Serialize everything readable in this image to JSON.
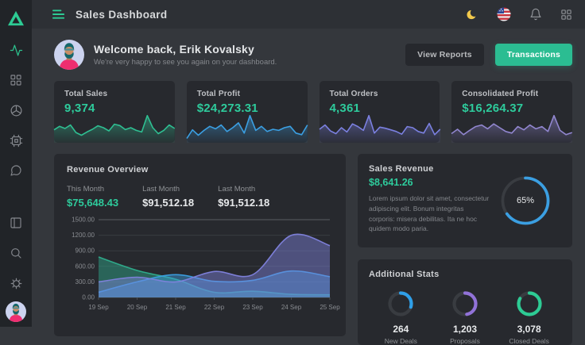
{
  "topbar": {
    "title": "Sales Dashboard"
  },
  "welcome": {
    "title": "Welcome back, Erik Kovalsky",
    "subtitle": "We're very happy to see you again on your dashboard.",
    "buttons": {
      "view_reports": "View Reports",
      "transactions": "Transactions"
    }
  },
  "stat_cards": [
    {
      "key": "total-sales",
      "label": "Total Sales",
      "value": "9,374",
      "chart_index": 1
    },
    {
      "key": "total-profit",
      "label": "Total Profit",
      "value": "$24,273.31",
      "chart_index": 2
    },
    {
      "key": "total-orders",
      "label": "Total Orders",
      "value": "4,361",
      "chart_index": 3
    },
    {
      "key": "consolidated-profit",
      "label": "Consolidated Profit",
      "value": "$16,264.37",
      "chart_index": 4
    }
  ],
  "revenue": {
    "title": "Revenue Overview",
    "stats": [
      {
        "label": "This Month",
        "value": "$75,648.43"
      },
      {
        "label": "Last Month",
        "value": "$91,512.18"
      },
      {
        "label": "Last Month",
        "value": "$91,512.18"
      }
    ]
  },
  "sales_revenue": {
    "title": "Sales Revenue",
    "value": "$8,641.26",
    "body": "Lorem ipsum dolor sit amet, consectetur adipiscing elit. Bonum integritas corporis: misera debilitas. Ita ne hoc quidem modo paria."
  },
  "additional_stats": {
    "title": "Additional Stats",
    "items": [
      {
        "value": "264",
        "label": "New Deals",
        "donut_index": 6
      },
      {
        "value": "1,203",
        "label": "Proposals",
        "donut_index": 7
      },
      {
        "value": "3,078",
        "label": "Closed Deals",
        "donut_index": 8
      }
    ]
  },
  "colors": {
    "accent_green": "#2ecb9c",
    "button_green": "#2bbd92",
    "blue": "#3b9fe2",
    "indigo": "#7f82dd",
    "purple": "#9186cf",
    "moon_yellow": "#f2c94c",
    "panel_bg": "#27292e",
    "page_bg": "#34373c",
    "sidebar_bg": "#212428"
  },
  "chart_data": [
    {
      "id": "revenue-overview",
      "type": "area",
      "title": "Revenue Overview",
      "x": [
        "19 Sep",
        "20 Sep",
        "21 Sep",
        "22 Sep",
        "23 Sep",
        "24 Sep",
        "25 Sep"
      ],
      "ylim": [
        0,
        1500
      ],
      "yticks": [
        0,
        300,
        600,
        900,
        1200,
        1500
      ],
      "grid": true,
      "legend": false,
      "series": [
        {
          "name": "green",
          "color": "#2fae8d",
          "values": [
            780,
            520,
            350,
            100,
            120,
            60,
            50
          ]
        },
        {
          "name": "blue",
          "color": "#3b9fe2",
          "values": [
            100,
            300,
            440,
            310,
            330,
            510,
            400
          ]
        },
        {
          "name": "indigo",
          "color": "#7f82dd",
          "values": [
            300,
            390,
            300,
            500,
            440,
            1200,
            1000
          ]
        }
      ]
    },
    {
      "id": "spark-total-sales",
      "type": "line",
      "color": "#2fbf92",
      "values": [
        42,
        55,
        47,
        60,
        32,
        22,
        34,
        44,
        57,
        50,
        38,
        63,
        58,
        43,
        50,
        40,
        34,
        95,
        50,
        28,
        40,
        60,
        47
      ]
    },
    {
      "id": "spark-total-profit",
      "type": "line",
      "color": "#3b9fe2",
      "values": [
        10,
        42,
        22,
        40,
        55,
        46,
        60,
        36,
        50,
        68,
        30,
        95,
        40,
        55,
        36,
        44,
        40,
        50,
        55,
        30,
        24,
        60
      ]
    },
    {
      "id": "spark-total-orders",
      "type": "line",
      "color": "#7b80e0",
      "values": [
        44,
        60,
        38,
        28,
        50,
        34,
        64,
        54,
        40,
        95,
        30,
        52,
        48,
        42,
        36,
        26,
        54,
        50,
        36,
        30,
        66,
        24,
        44
      ]
    },
    {
      "id": "spark-consolidated-profit",
      "type": "line",
      "color": "#9186cf",
      "values": [
        28,
        44,
        24,
        40,
        54,
        60,
        46,
        64,
        50,
        36,
        30,
        54,
        42,
        60,
        46,
        54,
        36,
        95,
        40,
        24,
        32
      ]
    },
    {
      "id": "sales-revenue-gauge",
      "type": "donut",
      "value_pct": 65,
      "label": "65%",
      "color": "#3b9fe2"
    },
    {
      "id": "new-deals-donut",
      "type": "donut",
      "value_pct": 30,
      "color": "#2f9fe8"
    },
    {
      "id": "proposals-donut",
      "type": "donut",
      "value_pct": 47,
      "color": "#9172d8"
    },
    {
      "id": "closed-deals-donut",
      "type": "donut",
      "value_pct": 83,
      "color": "#2dcb94"
    }
  ]
}
